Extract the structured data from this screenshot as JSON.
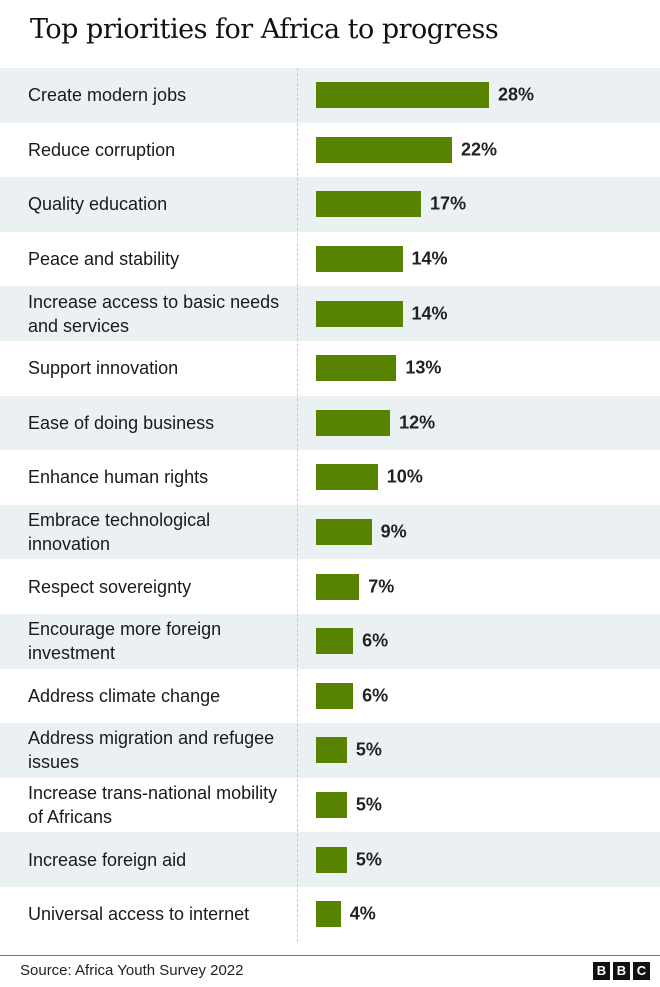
{
  "chart_data": {
    "type": "bar",
    "orientation": "horizontal",
    "title": "Top priorities for Africa to progress",
    "categories": [
      "Create modern jobs",
      "Reduce corruption",
      "Quality education",
      "Peace and stability",
      "Increase access to basic needs and services",
      "Support innovation",
      "Ease of doing business",
      "Enhance human rights",
      "Embrace technological innovation",
      "Respect sovereignty",
      "Encourage more foreign investment",
      "Address climate change",
      "Address migration and refugee issues",
      "Increase  trans-national mobility of Africans",
      "Increase foreign aid",
      "Universal access to internet"
    ],
    "values": [
      28,
      22,
      17,
      14,
      14,
      13,
      12,
      10,
      9,
      7,
      6,
      6,
      5,
      5,
      5,
      4
    ],
    "value_labels": [
      "28%",
      "22%",
      "17%",
      "14%",
      "14%",
      "13%",
      "12%",
      "10%",
      "9%",
      "7%",
      "6%",
      "6%",
      "5%",
      "5%",
      "5%",
      "4%"
    ],
    "unit": "%",
    "xlabel": "",
    "ylabel": "",
    "bar_color": "#588300",
    "source": "Source: Africa Youth Survey 2022"
  },
  "logo": [
    "B",
    "B",
    "C"
  ]
}
